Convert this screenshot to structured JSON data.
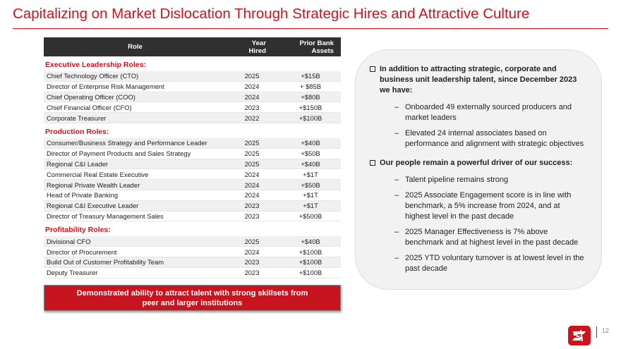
{
  "title": "Capitalizing on Market Dislocation Through Strategic Hires and Attractive Culture",
  "table": {
    "headers": [
      "Role",
      "Year Hired",
      "Prior Bank Assets"
    ],
    "sections": [
      {
        "heading": "Executive Leadership Roles:",
        "rows": [
          [
            "Chief Technology Officer (CTO)",
            "2025",
            "+$15B"
          ],
          [
            "Director of Enterprise Risk Management",
            "2024",
            "+ $85B"
          ],
          [
            "Chief Operating Officer (COO)",
            "2024",
            "+$80B"
          ],
          [
            "Chief Financial Officer (CFO)",
            "2023",
            "+$150B"
          ],
          [
            "Corporate Treasurer",
            "2022",
            "+$100B"
          ]
        ]
      },
      {
        "heading": "Production Roles:",
        "rows": [
          [
            "Consumer/Business Strategy and Performance Leader",
            "2025",
            "+$40B"
          ],
          [
            "Director of Payment Products and Sales Strategy",
            "2025",
            "+$50B"
          ],
          [
            "Regional C&I Leader",
            "2025",
            "+$40B"
          ],
          [
            "Commercial Real Estate Executive",
            "2024",
            "+$1T"
          ],
          [
            "Regional Private Wealth Leader",
            "2024",
            "+$50B"
          ],
          [
            "Head of Private Banking",
            "2024",
            "+$1T"
          ],
          [
            "Regional C&I Executive Leader",
            "2023",
            "+$1T"
          ],
          [
            "Director of Treasury Management Sales",
            "2023",
            "+$500B"
          ]
        ]
      },
      {
        "heading": "Profitability Roles:",
        "rows": [
          [
            "Divisional CFO",
            "2025",
            "+$40B"
          ],
          [
            "Director of Procurement",
            "2024",
            "+$100B"
          ],
          [
            "Build Out of Customer Profitability Team",
            "2023",
            "+$100B"
          ],
          [
            "Deputy Treasurer",
            "2023",
            "+$100B"
          ]
        ]
      }
    ]
  },
  "callout": "Demonstrated ability to attract talent with strong skillsets from peer and larger institutions",
  "panel": {
    "bullets": [
      {
        "text": "In addition to attracting strategic, corporate and business unit leadership talent, since December 2023 we have:",
        "subs": [
          "Onboarded 49 externally sourced producers and market leaders",
          "Elevated 24 internal associates based on performance and alignment with strategic objectives"
        ]
      },
      {
        "text": "Our people remain a powerful driver of our success:",
        "subs": [
          "Talent pipeline remains strong",
          "2025 Associate Engagement score is in line with benchmark, a 5% increase from 2024, and at highest level in the past decade",
          "2025 Manager Effectiveness is 7% above benchmark and at highest level in the past decade",
          "2025 YTD voluntary turnover is at lowest level in the past decade"
        ]
      }
    ]
  },
  "page_number": "12"
}
